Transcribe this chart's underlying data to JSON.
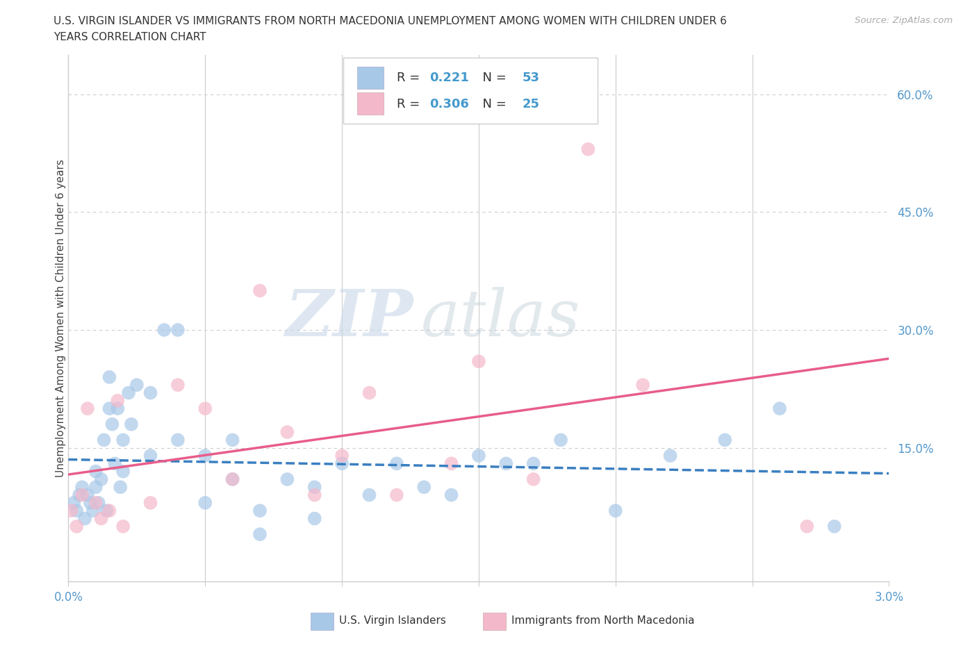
{
  "title_line1": "U.S. VIRGIN ISLANDER VS IMMIGRANTS FROM NORTH MACEDONIA UNEMPLOYMENT AMONG WOMEN WITH CHILDREN UNDER 6",
  "title_line2": "YEARS CORRELATION CHART",
  "source": "Source: ZipAtlas.com",
  "ylabel": "Unemployment Among Women with Children Under 6 years",
  "xlim": [
    0.0,
    0.03
  ],
  "ylim": [
    -0.02,
    0.65
  ],
  "ytick_positions": [
    0.0,
    0.15,
    0.3,
    0.45,
    0.6
  ],
  "ytick_labels": [
    "",
    "15.0%",
    "30.0%",
    "45.0%",
    "60.0%"
  ],
  "xtick_positions": [
    0.0,
    0.005,
    0.01,
    0.015,
    0.02,
    0.025,
    0.03
  ],
  "xtick_labels": [
    "0.0%",
    "",
    "",
    "",
    "",
    "",
    "3.0%"
  ],
  "color_blue": "#a8c8e8",
  "color_pink": "#f4b8cb",
  "color_blue_line": "#3a7fc1",
  "color_pink_line": "#e85d8a",
  "R_blue": 0.221,
  "N_blue": 53,
  "R_pink": 0.306,
  "N_pink": 25,
  "legend_label_blue": "U.S. Virgin Islanders",
  "legend_label_pink": "Immigrants from North Macedonia",
  "watermark_zip": "ZIP",
  "watermark_atlas": "atlas",
  "grid_color": "#cccccc",
  "background_color": "#ffffff",
  "blue_x": [
    0.0002,
    0.0003,
    0.0004,
    0.0005,
    0.0006,
    0.0007,
    0.0008,
    0.0009,
    0.001,
    0.001,
    0.0011,
    0.0012,
    0.0013,
    0.0014,
    0.0015,
    0.0015,
    0.0016,
    0.0017,
    0.0018,
    0.0019,
    0.002,
    0.002,
    0.0022,
    0.0023,
    0.0025,
    0.003,
    0.003,
    0.0035,
    0.004,
    0.004,
    0.005,
    0.005,
    0.006,
    0.006,
    0.007,
    0.007,
    0.008,
    0.009,
    0.009,
    0.01,
    0.011,
    0.012,
    0.013,
    0.014,
    0.015,
    0.016,
    0.017,
    0.018,
    0.02,
    0.022,
    0.024,
    0.026,
    0.028
  ],
  "blue_y": [
    0.08,
    0.07,
    0.09,
    0.1,
    0.06,
    0.09,
    0.08,
    0.07,
    0.1,
    0.12,
    0.08,
    0.11,
    0.16,
    0.07,
    0.2,
    0.24,
    0.18,
    0.13,
    0.2,
    0.1,
    0.12,
    0.16,
    0.22,
    0.18,
    0.23,
    0.14,
    0.22,
    0.3,
    0.3,
    0.16,
    0.14,
    0.08,
    0.11,
    0.16,
    0.04,
    0.07,
    0.11,
    0.1,
    0.06,
    0.13,
    0.09,
    0.13,
    0.1,
    0.09,
    0.14,
    0.13,
    0.13,
    0.16,
    0.07,
    0.14,
    0.16,
    0.2,
    0.05
  ],
  "pink_x": [
    0.0001,
    0.0003,
    0.0005,
    0.0007,
    0.001,
    0.0012,
    0.0015,
    0.0018,
    0.002,
    0.003,
    0.004,
    0.005,
    0.006,
    0.007,
    0.008,
    0.009,
    0.01,
    0.011,
    0.012,
    0.014,
    0.015,
    0.017,
    0.019,
    0.021,
    0.027
  ],
  "pink_y": [
    0.07,
    0.05,
    0.09,
    0.2,
    0.08,
    0.06,
    0.07,
    0.21,
    0.05,
    0.08,
    0.23,
    0.2,
    0.11,
    0.35,
    0.17,
    0.09,
    0.14,
    0.22,
    0.09,
    0.13,
    0.26,
    0.11,
    0.53,
    0.23,
    0.05
  ]
}
